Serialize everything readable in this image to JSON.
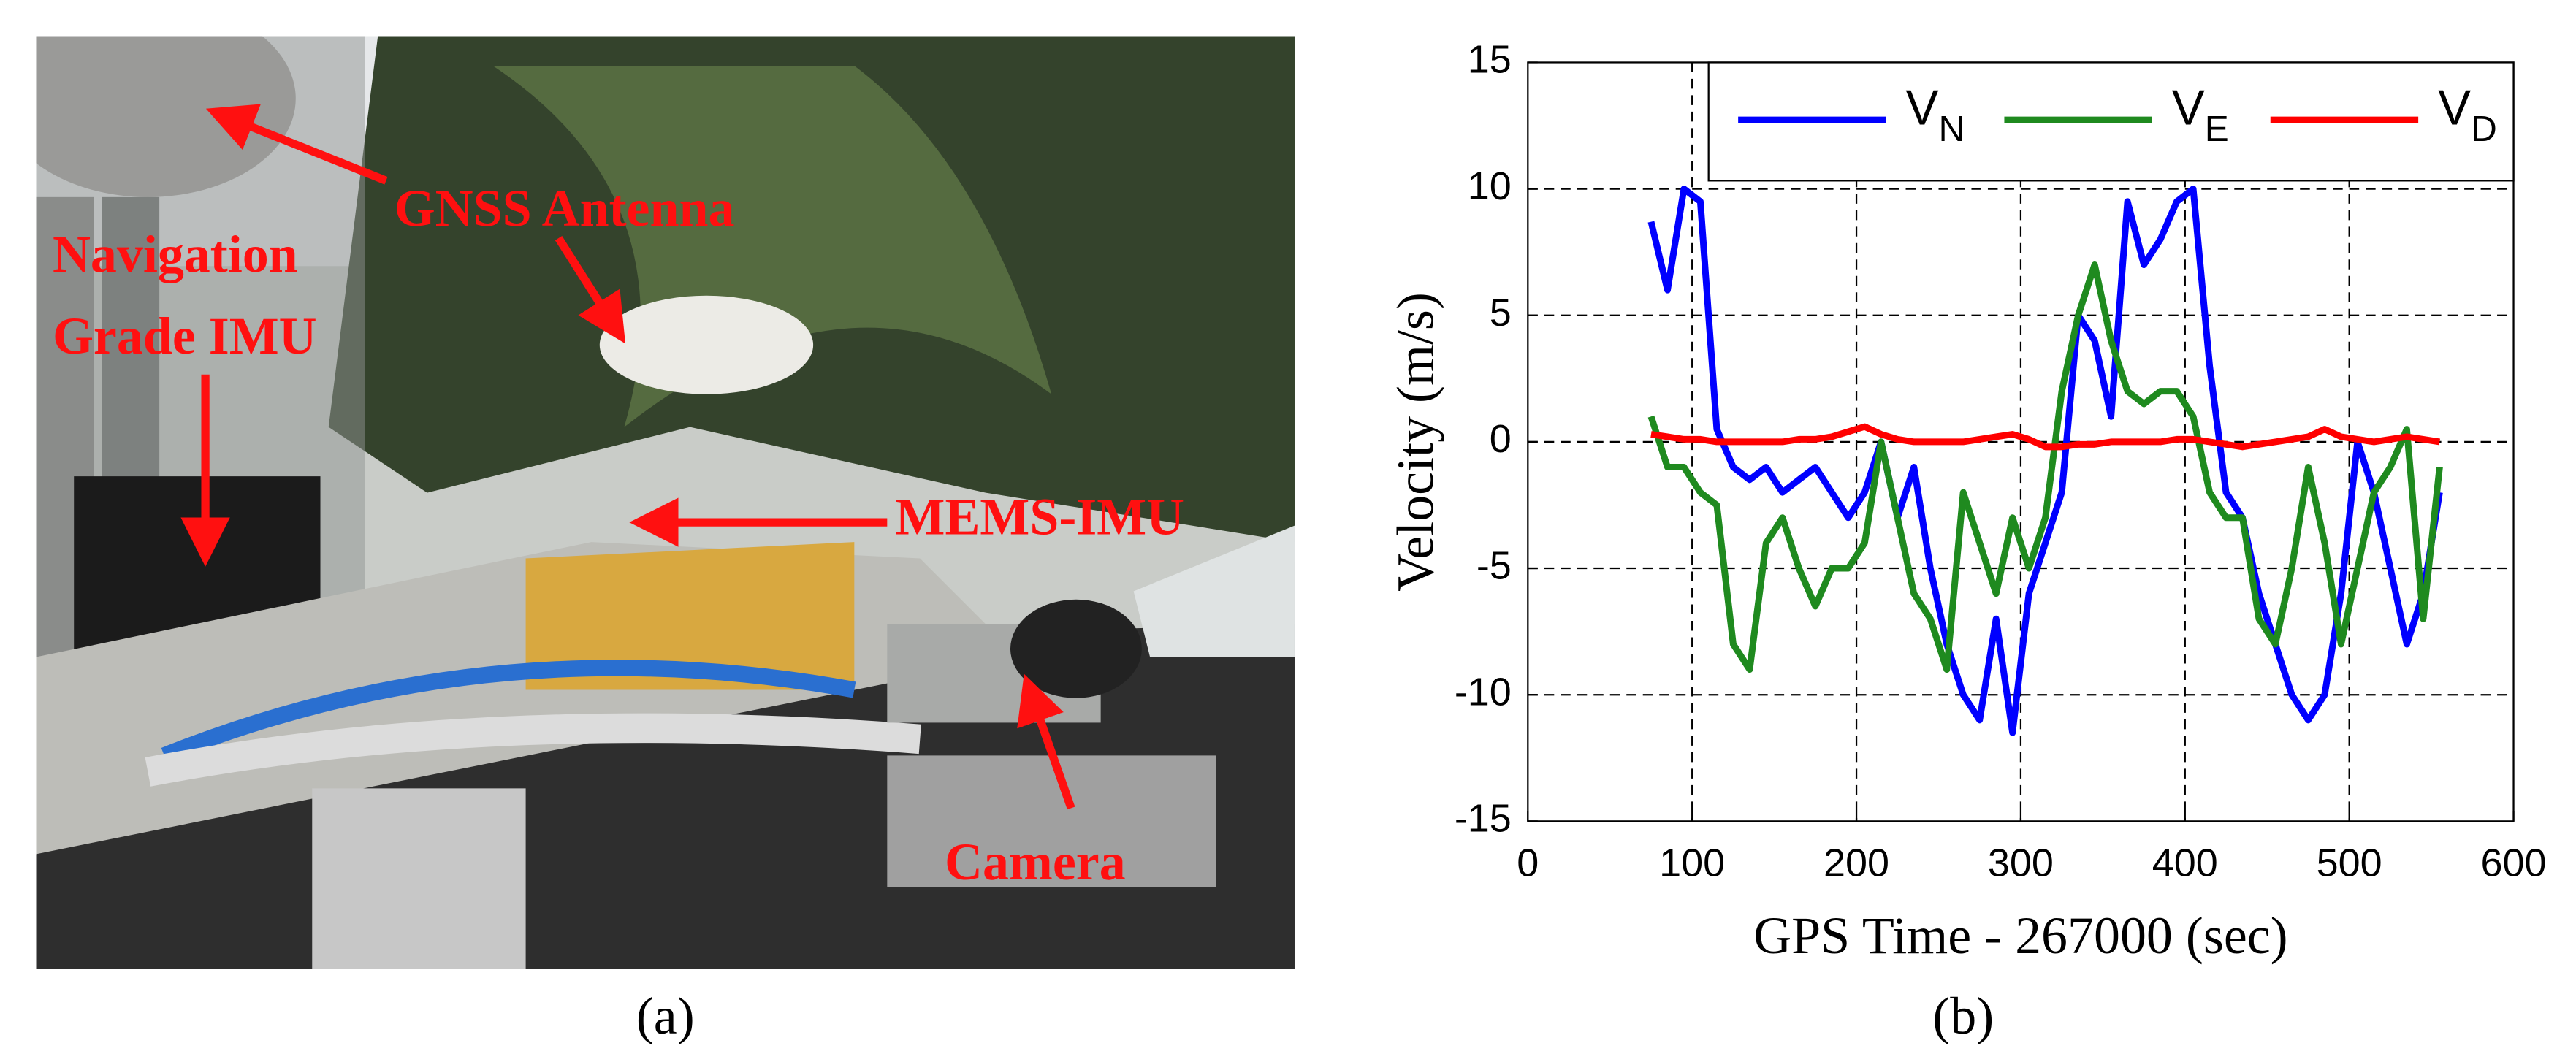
{
  "panel_a": {
    "label": "(a)",
    "annotations": {
      "gnss": "GNSS Antenna",
      "nav": [
        "Navigation",
        "Grade IMU"
      ],
      "mems": "MEMS-IMU",
      "camera": "Camera"
    }
  },
  "panel_b": {
    "label": "(b)"
  },
  "chart_data": {
    "type": "line",
    "xlabel": "GPS Time - 267000 (sec)",
    "ylabel": "Velocity (m/s)",
    "x": [
      75,
      85,
      95,
      105,
      115,
      125,
      135,
      145,
      155,
      165,
      175,
      185,
      195,
      205,
      215,
      225,
      235,
      245,
      255,
      265,
      275,
      285,
      295,
      305,
      315,
      325,
      335,
      345,
      355,
      365,
      375,
      385,
      395,
      405,
      415,
      425,
      435,
      445,
      455,
      465,
      475,
      485,
      495,
      505,
      515,
      525,
      535,
      545,
      555
    ],
    "series": [
      {
        "name": "VN",
        "color": "#0000ff",
        "values": [
          8.7,
          6,
          10,
          9.5,
          0.5,
          -1,
          -1.5,
          -1,
          -2,
          -1.5,
          -1,
          -2,
          -3,
          -2,
          0,
          -3,
          -1,
          -5,
          -8,
          -10,
          -11,
          -7,
          -11.5,
          -6,
          -4,
          -2,
          5,
          4,
          1,
          9.5,
          7,
          8,
          9.5,
          10,
          3,
          -2,
          -3,
          -6,
          -8,
          -10,
          -11,
          -10,
          -6,
          0,
          -2,
          -5,
          -8,
          -6,
          -2
        ]
      },
      {
        "name": "VE",
        "color": "#1f8a1f",
        "values": [
          1,
          -1,
          -1,
          -2,
          -2.5,
          -8,
          -9,
          -4,
          -3,
          -5,
          -6.5,
          -5,
          -5,
          -4,
          0,
          -3,
          -6,
          -7,
          -9,
          -2,
          -4,
          -6,
          -3,
          -5,
          -3,
          2,
          5,
          7,
          4,
          2,
          1.5,
          2,
          2,
          1,
          -2,
          -3,
          -3,
          -7,
          -8,
          -5,
          -1,
          -4,
          -8,
          -5,
          -2,
          -1,
          0.5,
          -7,
          -1
        ]
      },
      {
        "name": "VD",
        "color": "#ff0000",
        "values": [
          0.3,
          0.2,
          0.1,
          0.1,
          0,
          0,
          0,
          0,
          0,
          0.1,
          0.1,
          0.2,
          0.4,
          0.6,
          0.3,
          0.1,
          0,
          0,
          0,
          0,
          0.1,
          0.2,
          0.3,
          0.1,
          -0.2,
          -0.2,
          -0.1,
          -0.1,
          0,
          0,
          0,
          0,
          0.1,
          0.1,
          0,
          -0.1,
          -0.2,
          -0.1,
          0,
          0.1,
          0.2,
          0.5,
          0.2,
          0.1,
          0,
          0.1,
          0.2,
          0.1,
          0
        ]
      }
    ],
    "xlim": [
      0,
      600
    ],
    "xticks": [
      0,
      100,
      200,
      300,
      400,
      500,
      600
    ],
    "ylim": [
      -15,
      15
    ],
    "yticks": [
      -15,
      -10,
      -5,
      0,
      5,
      10,
      15
    ],
    "grid": true,
    "legend": "upper right"
  }
}
